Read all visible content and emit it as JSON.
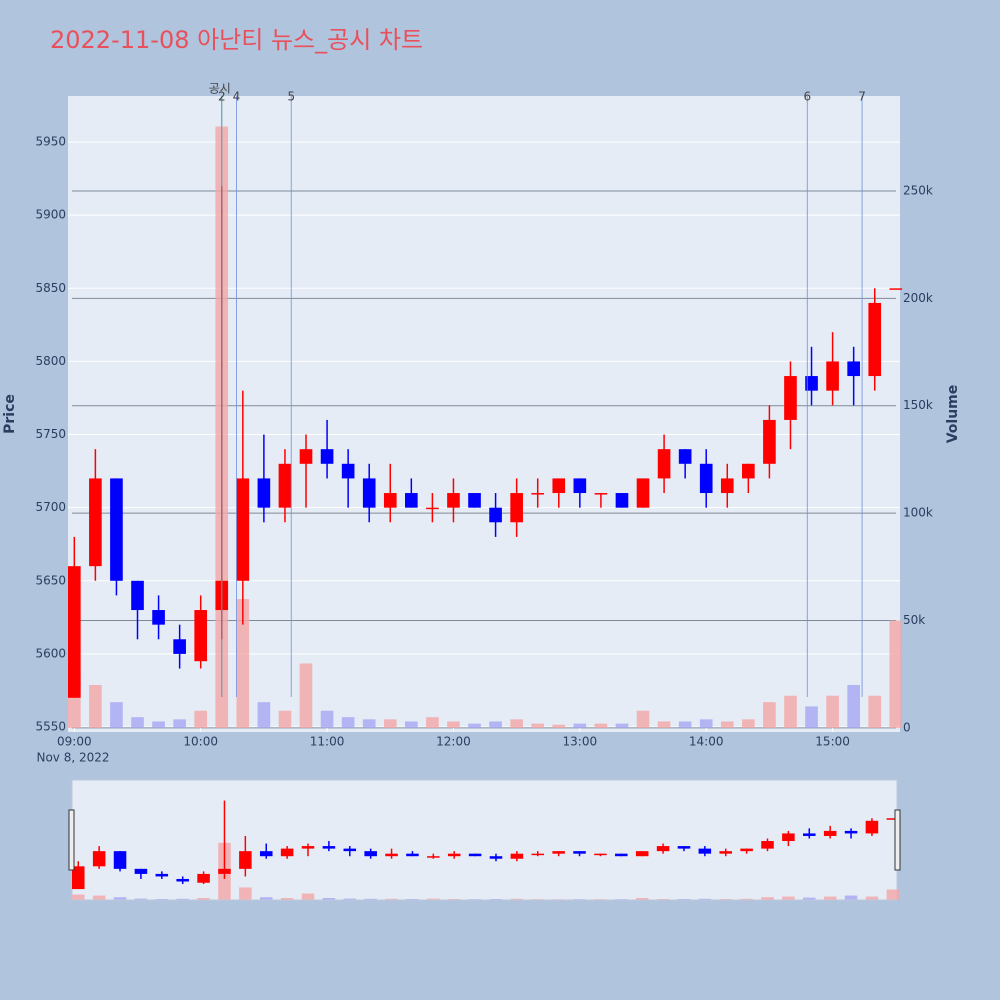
{
  "chart_data": {
    "type": "candlestick",
    "title": "2022-11-08 아난티 뉴스_공시 차트",
    "x_date_label": "Nov 8, 2022",
    "y_label": "Price",
    "y2_label": "Volume",
    "x": [
      "09:00",
      "09:10",
      "09:20",
      "09:30",
      "09:40",
      "09:50",
      "10:00",
      "10:10",
      "10:20",
      "10:30",
      "10:40",
      "10:50",
      "11:00",
      "11:10",
      "11:20",
      "11:30",
      "11:40",
      "11:50",
      "12:00",
      "12:10",
      "12:20",
      "12:30",
      "12:40",
      "12:50",
      "13:00",
      "13:10",
      "13:20",
      "13:30",
      "13:40",
      "13:50",
      "14:00",
      "14:10",
      "14:20",
      "14:30",
      "14:40",
      "14:50",
      "15:00",
      "15:10",
      "15:20",
      "15:30"
    ],
    "open": [
      5570,
      5660,
      5720,
      5650,
      5630,
      5610,
      5595,
      5630,
      5650,
      5720,
      5700,
      5730,
      5740,
      5730,
      5720,
      5700,
      5710,
      5700,
      5700,
      5710,
      5700,
      5690,
      5710,
      5710,
      5720,
      5710,
      5710,
      5700,
      5720,
      5740,
      5730,
      5710,
      5720,
      5730,
      5760,
      5790,
      5780,
      5800,
      5790,
      5850
    ],
    "high": [
      5680,
      5740,
      5720,
      5650,
      5640,
      5620,
      5640,
      5920,
      5780,
      5750,
      5740,
      5750,
      5760,
      5740,
      5730,
      5730,
      5720,
      5710,
      5720,
      5710,
      5710,
      5720,
      5720,
      5720,
      5720,
      5710,
      5710,
      5720,
      5750,
      5740,
      5740,
      5730,
      5730,
      5770,
      5800,
      5810,
      5820,
      5810,
      5850,
      5850
    ],
    "low": [
      5570,
      5650,
      5640,
      5610,
      5610,
      5590,
      5590,
      5610,
      5620,
      5690,
      5690,
      5700,
      5720,
      5700,
      5690,
      5690,
      5700,
      5690,
      5690,
      5700,
      5680,
      5680,
      5700,
      5700,
      5700,
      5700,
      5700,
      5700,
      5710,
      5720,
      5700,
      5700,
      5710,
      5720,
      5740,
      5770,
      5770,
      5770,
      5780,
      5850
    ],
    "close": [
      5660,
      5720,
      5650,
      5630,
      5620,
      5600,
      5630,
      5650,
      5720,
      5700,
      5730,
      5740,
      5730,
      5720,
      5700,
      5710,
      5700,
      5700,
      5710,
      5700,
      5690,
      5710,
      5710,
      5720,
      5710,
      5710,
      5700,
      5720,
      5740,
      5730,
      5710,
      5720,
      5730,
      5760,
      5790,
      5780,
      5800,
      5790,
      5840,
      5850
    ],
    "volume": [
      25000,
      20000,
      12000,
      5000,
      3000,
      4000,
      8000,
      280000,
      60000,
      12000,
      8000,
      30000,
      8000,
      5000,
      4000,
      4000,
      3000,
      5000,
      3000,
      2000,
      3000,
      4000,
      2000,
      1500,
      2000,
      2000,
      2000,
      8000,
      3000,
      3000,
      4000,
      3000,
      4000,
      12000,
      15000,
      10000,
      15000,
      20000,
      15000,
      50000
    ],
    "up_color": "#ff0000",
    "down_color": "#0000ff",
    "volume_up_color": "#f4a6a6",
    "volume_down_color": "#a6a6f4",
    "xlim": [
      "08:57",
      "15:32"
    ],
    "xticks": [
      "09:00",
      "10:00",
      "11:00",
      "12:00",
      "13:00",
      "14:00",
      "15:00"
    ],
    "ylim": [
      5546.6,
      5981.5
    ],
    "yticks": [
      5550,
      5600,
      5650,
      5700,
      5750,
      5800,
      5850,
      5900,
      5950
    ],
    "y2lim": [
      -1900,
      294200
    ],
    "y2ticks": [
      0,
      {
        "value": 50000,
        "label": "50k"
      },
      {
        "value": 100000,
        "label": "100k"
      },
      {
        "value": 150000,
        "label": "150k"
      },
      {
        "value": 200000,
        "label": "200k"
      },
      {
        "value": 250000,
        "label": "250k"
      }
    ],
    "grid": true,
    "range_slider": true,
    "annotations": [
      {
        "label": "공시",
        "x": "10:10",
        "color": "#3cb043"
      },
      {
        "label": "2",
        "x": "10:10",
        "color": "#6f8fe0"
      },
      {
        "label": "4",
        "x": "10:17",
        "color": "#6f8fe0"
      },
      {
        "label": "5",
        "x": "10:43",
        "color": "#6f8fe0"
      },
      {
        "label": "6",
        "x": "14:48",
        "color": "#6f8fe0"
      },
      {
        "label": "7",
        "x": "15:14",
        "color": "#6f8fe0"
      }
    ]
  }
}
